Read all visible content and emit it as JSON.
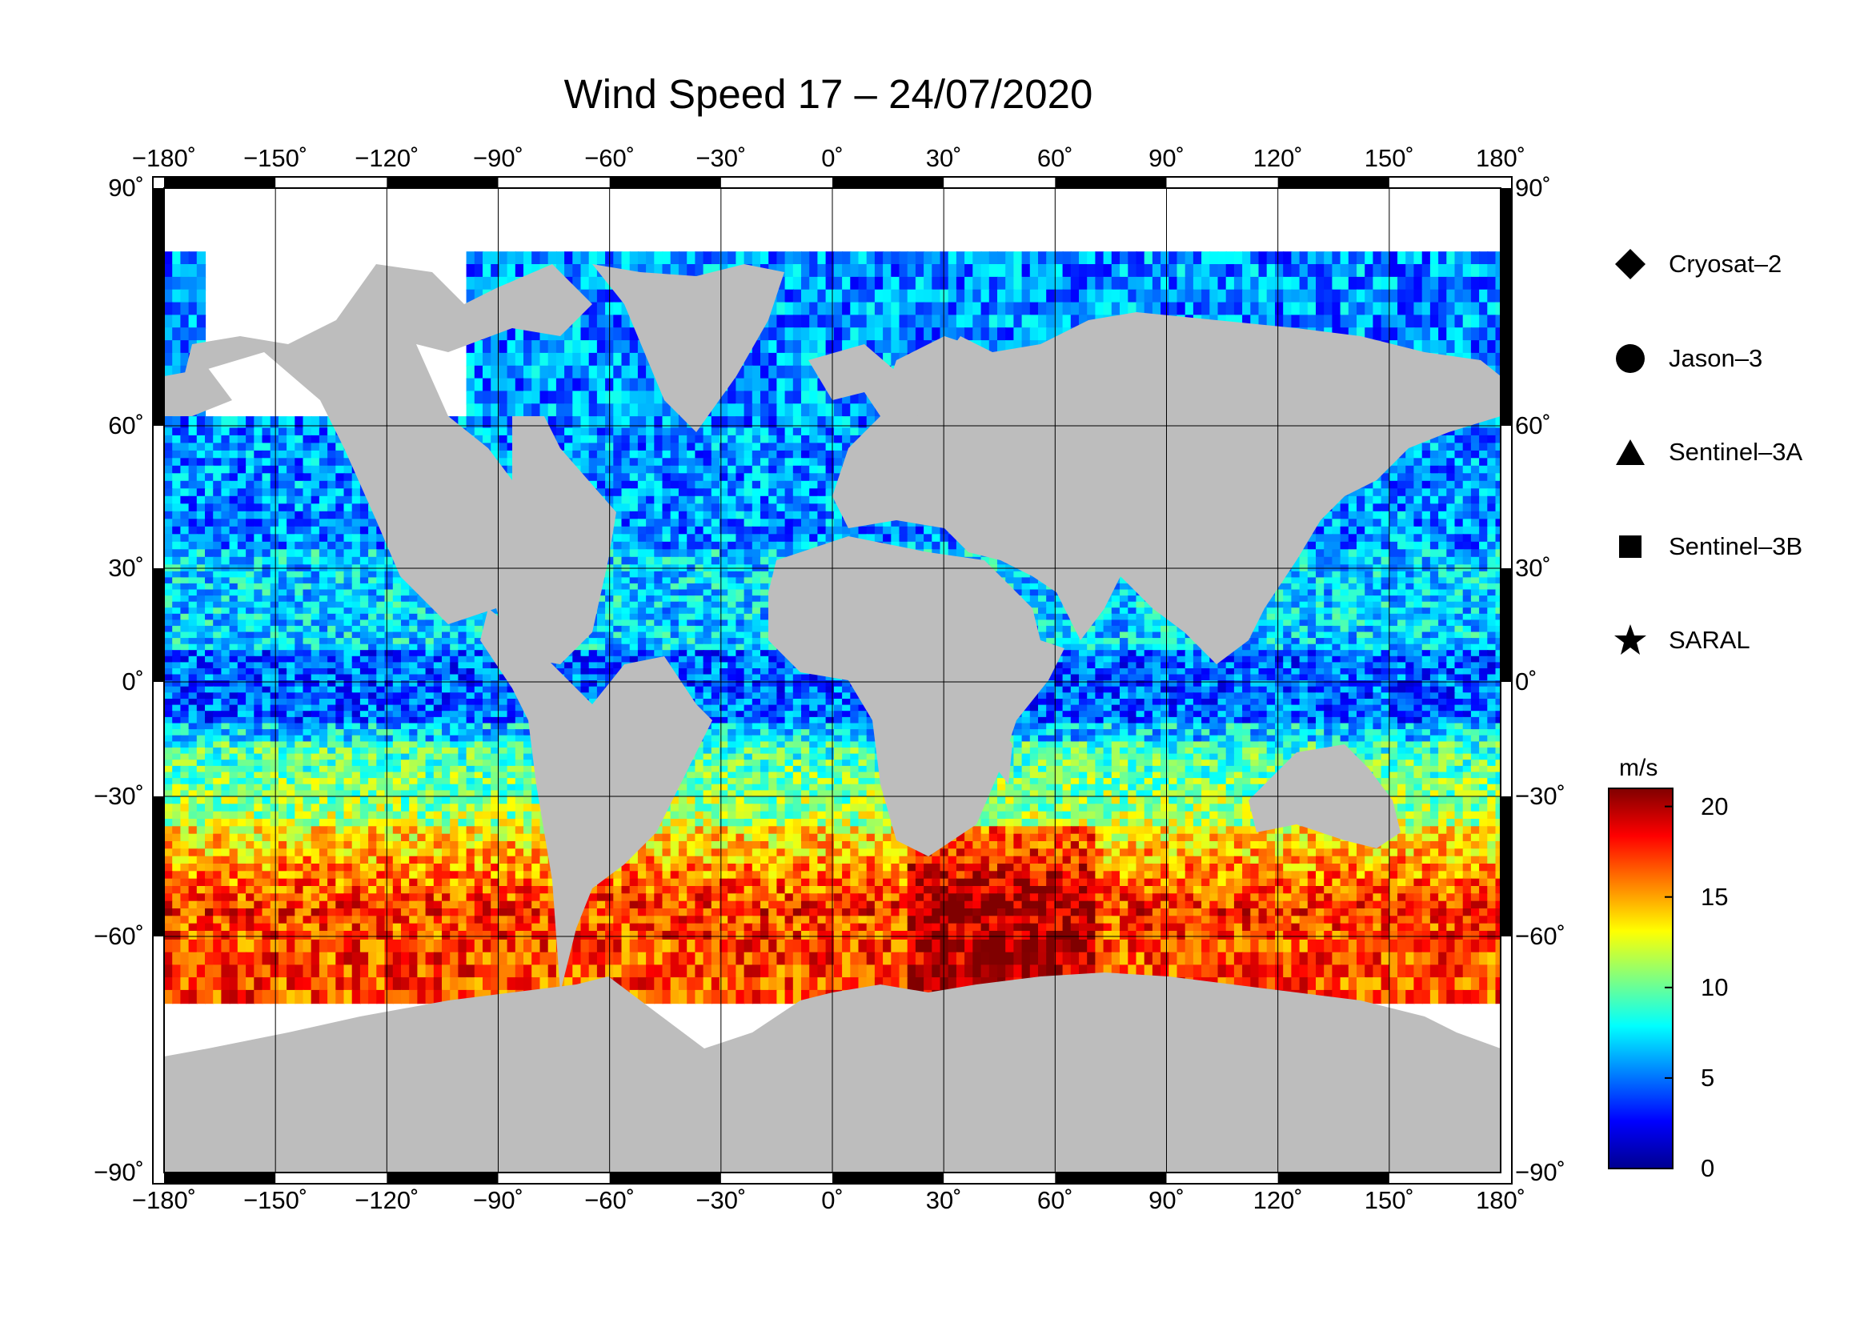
{
  "title": "Wind Speed 17 – 24/07/2020",
  "lon_ticks": [
    "−180˚",
    "−150˚",
    "−120˚",
    "−90˚",
    "−60˚",
    "−30˚",
    "0˚",
    "30˚",
    "60˚",
    "90˚",
    "120˚",
    "150˚",
    "180˚"
  ],
  "lat_ticks": [
    "90˚",
    "60˚",
    "30˚",
    "0˚",
    "−30˚",
    "−60˚",
    "−90˚"
  ],
  "legend": [
    {
      "label": "Cryosat–2",
      "icon": "diamond-icon"
    },
    {
      "label": "Jason–3",
      "icon": "circle-icon"
    },
    {
      "label": "Sentinel–3A",
      "icon": "triangle-icon"
    },
    {
      "label": "Sentinel–3B",
      "icon": "square-icon"
    },
    {
      "label": "SARAL",
      "icon": "star-icon"
    }
  ],
  "colorbar": {
    "unit": "m/s",
    "min": 0,
    "max": 21,
    "ticks": [
      "20",
      "15",
      "10",
      "5",
      "0"
    ],
    "colors": [
      "#00008f",
      "#0000ff",
      "#0080ff",
      "#00ffff",
      "#80ff80",
      "#ffff00",
      "#ff8000",
      "#ff0000",
      "#800000"
    ]
  },
  "colors": {
    "land": "#bdbdbd",
    "ice": "#ffffff",
    "grid": "#000000"
  }
}
